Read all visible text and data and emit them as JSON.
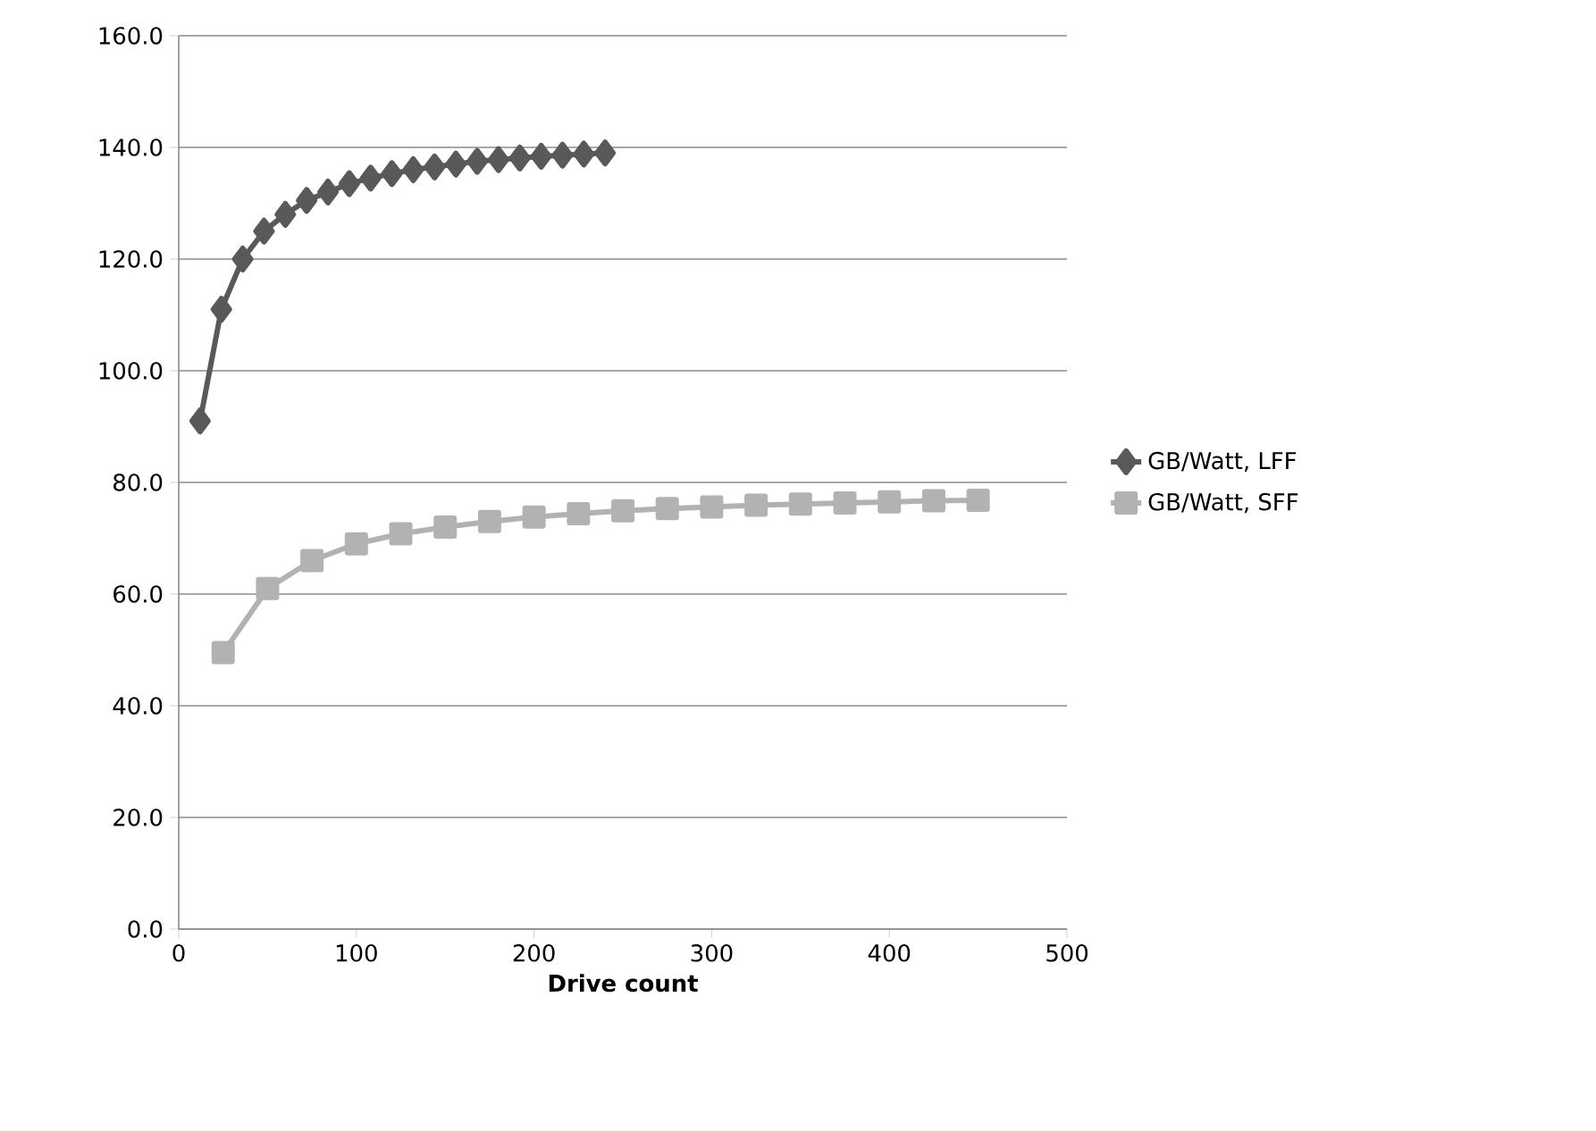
{
  "chart_data": {
    "type": "line",
    "xlabel": "Drive count",
    "xlim": [
      0,
      500
    ],
    "xticks": [
      0,
      100,
      200,
      300,
      400,
      500
    ],
    "ylim": [
      0,
      160
    ],
    "yticks": [
      {
        "value": 0,
        "label": "0.0"
      },
      {
        "value": 20,
        "label": "20.0"
      },
      {
        "value": 40,
        "label": "40.0"
      },
      {
        "value": 60,
        "label": "60.0"
      },
      {
        "value": 80,
        "label": "80.0"
      },
      {
        "value": 100,
        "label": "100.0"
      },
      {
        "value": 120,
        "label": "120.0"
      },
      {
        "value": 140,
        "label": "140.0"
      },
      {
        "value": 160,
        "label": "160.0"
      }
    ],
    "grid": "y",
    "legend": "right",
    "line_style": "solid",
    "series": [
      {
        "name": "GB/Watt, LFF",
        "color": "#595959",
        "marker": "diamond",
        "x": [
          12,
          24,
          36,
          48,
          60,
          72,
          84,
          96,
          108,
          120,
          132,
          144,
          156,
          168,
          180,
          192,
          204,
          216,
          228,
          240
        ],
        "values": [
          91,
          111,
          120,
          125,
          128,
          130.5,
          132,
          133.5,
          134.5,
          135.3,
          136,
          136.5,
          137,
          137.5,
          137.8,
          138.1,
          138.4,
          138.6,
          138.8,
          139
        ]
      },
      {
        "name": "GB/Watt, SFF",
        "color": "#b2b2b2",
        "marker": "square",
        "x": [
          25,
          50,
          75,
          100,
          125,
          150,
          175,
          200,
          225,
          250,
          275,
          300,
          325,
          350,
          375,
          400,
          425,
          450
        ],
        "values": [
          49.5,
          61,
          66,
          69,
          70.8,
          72,
          73,
          73.8,
          74.4,
          74.9,
          75.3,
          75.6,
          75.9,
          76.1,
          76.3,
          76.5,
          76.7,
          76.8
        ]
      }
    ]
  }
}
